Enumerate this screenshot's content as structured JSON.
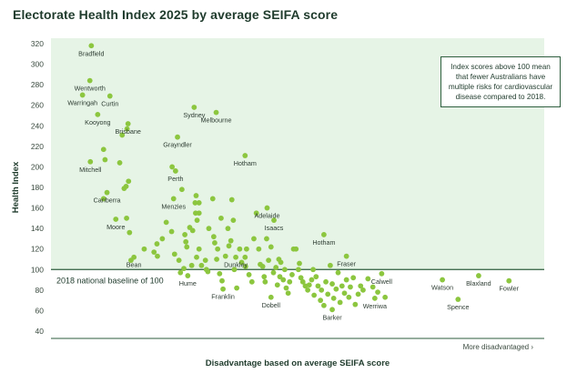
{
  "title": "Electorate Health Index 2025 by average SEIFA score",
  "callout": "Index scores above 100 mean that fewer Australians have multiple risks for cardiovascular disease compared to 2018.",
  "colors": {
    "shade": "#e6f4e6",
    "point": "#8cc63f",
    "axis": "#2e5e3e",
    "text": "#1f3b2c"
  },
  "chart_data": {
    "type": "scatter",
    "title": "Electorate Health Index 2025 by average SEIFA score",
    "xlabel": "Disadvantage based on average SEIFA score",
    "x_direction_label": "More disadvantaged ›",
    "ylabel": "Health Index",
    "ylim": [
      40,
      320
    ],
    "xlim": [
      0,
      100
    ],
    "yticks": [
      40,
      60,
      80,
      100,
      120,
      140,
      160,
      180,
      200,
      220,
      240,
      260,
      280,
      300,
      320
    ],
    "baseline": {
      "value": 100,
      "label": "2018 national baseline of 100"
    },
    "shaded_region": "above baseline",
    "labeled_points": [
      {
        "name": "Bradfield",
        "x": 7.5,
        "y": 318
      },
      {
        "name": "Wentworth",
        "x": 7.2,
        "y": 284
      },
      {
        "name": "Warringah",
        "x": 5.7,
        "y": 270
      },
      {
        "name": "Curtin",
        "x": 11.3,
        "y": 269
      },
      {
        "name": "Kooyong",
        "x": 8.8,
        "y": 251
      },
      {
        "name": "Brisbane",
        "x": 15.0,
        "y": 242
      },
      {
        "name": "Sydney",
        "x": 28.5,
        "y": 258
      },
      {
        "name": "Melbourne",
        "x": 33.0,
        "y": 253
      },
      {
        "name": "Grayndler",
        "x": 25.1,
        "y": 229
      },
      {
        "name": "Hotham",
        "x": 38.9,
        "y": 211
      },
      {
        "name": "Mitchell",
        "x": 7.3,
        "y": 205
      },
      {
        "name": "Perth",
        "x": 24.7,
        "y": 196
      },
      {
        "name": "Canberra",
        "x": 10.7,
        "y": 175
      },
      {
        "name": "Menzies",
        "x": 24.3,
        "y": 169
      },
      {
        "name": "Adelaide",
        "x": 43.4,
        "y": 160
      },
      {
        "name": "Moore",
        "x": 12.5,
        "y": 149
      },
      {
        "name": "Isaacs",
        "x": 44.8,
        "y": 148
      },
      {
        "name": "Hotham",
        "x": 55.0,
        "y": 134
      },
      {
        "name": "Bean",
        "x": 16.2,
        "y": 112
      },
      {
        "name": "Dunkley",
        "x": 37.0,
        "y": 112
      },
      {
        "name": "Fraser",
        "x": 59.6,
        "y": 113
      },
      {
        "name": "Hume",
        "x": 27.2,
        "y": 94
      },
      {
        "name": "Calwell",
        "x": 66.8,
        "y": 96
      },
      {
        "name": "Franklin",
        "x": 34.4,
        "y": 81
      },
      {
        "name": "Dobell",
        "x": 44.2,
        "y": 73
      },
      {
        "name": "Watson",
        "x": 79.2,
        "y": 90
      },
      {
        "name": "Blaxland",
        "x": 86.6,
        "y": 94
      },
      {
        "name": "Fowler",
        "x": 92.8,
        "y": 89
      },
      {
        "name": "Spence",
        "x": 82.4,
        "y": 71
      },
      {
        "name": "Werriwa",
        "x": 65.4,
        "y": 72
      },
      {
        "name": "Barker",
        "x": 56.7,
        "y": 61
      }
    ],
    "other_points": [
      {
        "x": 13.8,
        "y": 231
      },
      {
        "x": 14.8,
        "y": 237
      },
      {
        "x": 10.0,
        "y": 217
      },
      {
        "x": 10.3,
        "y": 207
      },
      {
        "x": 13.3,
        "y": 204
      },
      {
        "x": 15.1,
        "y": 186
      },
      {
        "x": 14.6,
        "y": 181
      },
      {
        "x": 14.2,
        "y": 179
      },
      {
        "x": 10.0,
        "y": 169
      },
      {
        "x": 14.7,
        "y": 150
      },
      {
        "x": 15.3,
        "y": 136
      },
      {
        "x": 15.6,
        "y": 109
      },
      {
        "x": 18.3,
        "y": 120
      },
      {
        "x": 20.3,
        "y": 117
      },
      {
        "x": 20.9,
        "y": 125
      },
      {
        "x": 21.0,
        "y": 113
      },
      {
        "x": 22.8,
        "y": 146
      },
      {
        "x": 23.9,
        "y": 137
      },
      {
        "x": 24.5,
        "y": 115
      },
      {
        "x": 25.4,
        "y": 109
      },
      {
        "x": 25.7,
        "y": 97
      },
      {
        "x": 26.4,
        "y": 101
      },
      {
        "x": 26.6,
        "y": 134
      },
      {
        "x": 26.8,
        "y": 127
      },
      {
        "x": 27.0,
        "y": 122
      },
      {
        "x": 27.6,
        "y": 141
      },
      {
        "x": 28.0,
        "y": 104
      },
      {
        "x": 28.2,
        "y": 138
      },
      {
        "x": 28.7,
        "y": 165
      },
      {
        "x": 28.9,
        "y": 172
      },
      {
        "x": 28.8,
        "y": 155
      },
      {
        "x": 29.1,
        "y": 148
      },
      {
        "x": 29.5,
        "y": 165
      },
      {
        "x": 29.5,
        "y": 155
      },
      {
        "x": 29.5,
        "y": 120
      },
      {
        "x": 29.0,
        "y": 112
      },
      {
        "x": 30.0,
        "y": 104
      },
      {
        "x": 30.8,
        "y": 109
      },
      {
        "x": 31.0,
        "y": 100
      },
      {
        "x": 31.3,
        "y": 98
      },
      {
        "x": 32.3,
        "y": 169
      },
      {
        "x": 32.5,
        "y": 132
      },
      {
        "x": 32.7,
        "y": 126
      },
      {
        "x": 33.1,
        "y": 110
      },
      {
        "x": 33.3,
        "y": 120
      },
      {
        "x": 33.7,
        "y": 96
      },
      {
        "x": 34.2,
        "y": 89
      },
      {
        "x": 34.9,
        "y": 113
      },
      {
        "x": 35.4,
        "y": 140
      },
      {
        "x": 35.6,
        "y": 123
      },
      {
        "x": 36.0,
        "y": 128
      },
      {
        "x": 36.2,
        "y": 168
      },
      {
        "x": 36.5,
        "y": 148
      },
      {
        "x": 36.7,
        "y": 100
      },
      {
        "x": 37.2,
        "y": 82
      },
      {
        "x": 37.8,
        "y": 120
      },
      {
        "x": 38.2,
        "y": 107
      },
      {
        "x": 38.9,
        "y": 112
      },
      {
        "x": 39.0,
        "y": 103
      },
      {
        "x": 39.2,
        "y": 120
      },
      {
        "x": 39.7,
        "y": 95
      },
      {
        "x": 40.3,
        "y": 88
      },
      {
        "x": 40.7,
        "y": 130
      },
      {
        "x": 41.2,
        "y": 155
      },
      {
        "x": 41.7,
        "y": 120
      },
      {
        "x": 42.0,
        "y": 105
      },
      {
        "x": 42.5,
        "y": 103
      },
      {
        "x": 42.8,
        "y": 93
      },
      {
        "x": 43.0,
        "y": 88
      },
      {
        "x": 43.3,
        "y": 130
      },
      {
        "x": 43.7,
        "y": 109
      },
      {
        "x": 44.2,
        "y": 122
      },
      {
        "x": 44.7,
        "y": 97
      },
      {
        "x": 45.2,
        "y": 102
      },
      {
        "x": 45.5,
        "y": 85
      },
      {
        "x": 46.0,
        "y": 93
      },
      {
        "x": 46.2,
        "y": 107
      },
      {
        "x": 46.7,
        "y": 90
      },
      {
        "x": 47.0,
        "y": 100
      },
      {
        "x": 47.3,
        "y": 82
      },
      {
        "x": 47.7,
        "y": 77
      },
      {
        "x": 48.0,
        "y": 88
      },
      {
        "x": 48.5,
        "y": 95
      },
      {
        "x": 48.8,
        "y": 120
      },
      {
        "x": 49.3,
        "y": 120
      },
      {
        "x": 49.8,
        "y": 100
      },
      {
        "x": 50.3,
        "y": 92
      },
      {
        "x": 50.7,
        "y": 88
      },
      {
        "x": 51.2,
        "y": 84
      },
      {
        "x": 51.7,
        "y": 80
      },
      {
        "x": 52.0,
        "y": 85
      },
      {
        "x": 52.5,
        "y": 90
      },
      {
        "x": 53.0,
        "y": 75
      },
      {
        "x": 53.4,
        "y": 93
      },
      {
        "x": 53.8,
        "y": 84
      },
      {
        "x": 54.3,
        "y": 70
      },
      {
        "x": 54.5,
        "y": 80
      },
      {
        "x": 55.0,
        "y": 65
      },
      {
        "x": 55.4,
        "y": 88
      },
      {
        "x": 55.8,
        "y": 76
      },
      {
        "x": 56.3,
        "y": 104
      },
      {
        "x": 56.7,
        "y": 86
      },
      {
        "x": 57.0,
        "y": 72
      },
      {
        "x": 57.5,
        "y": 81
      },
      {
        "x": 57.9,
        "y": 97
      },
      {
        "x": 58.3,
        "y": 68
      },
      {
        "x": 58.7,
        "y": 84
      },
      {
        "x": 59.2,
        "y": 77
      },
      {
        "x": 59.6,
        "y": 90
      },
      {
        "x": 60.1,
        "y": 73
      },
      {
        "x": 60.4,
        "y": 83
      },
      {
        "x": 61.0,
        "y": 92
      },
      {
        "x": 61.4,
        "y": 66
      },
      {
        "x": 62.0,
        "y": 76
      },
      {
        "x": 62.5,
        "y": 84
      },
      {
        "x": 63.0,
        "y": 80
      },
      {
        "x": 64.0,
        "y": 91
      },
      {
        "x": 65.0,
        "y": 83
      },
      {
        "x": 66.0,
        "y": 78
      },
      {
        "x": 67.5,
        "y": 73
      },
      {
        "x": 22.0,
        "y": 130
      },
      {
        "x": 24.0,
        "y": 200
      },
      {
        "x": 26.0,
        "y": 178
      },
      {
        "x": 31.5,
        "y": 140
      },
      {
        "x": 34.0,
        "y": 150
      },
      {
        "x": 45.8,
        "y": 110
      },
      {
        "x": 50.0,
        "y": 106
      },
      {
        "x": 52.8,
        "y": 100
      }
    ]
  }
}
